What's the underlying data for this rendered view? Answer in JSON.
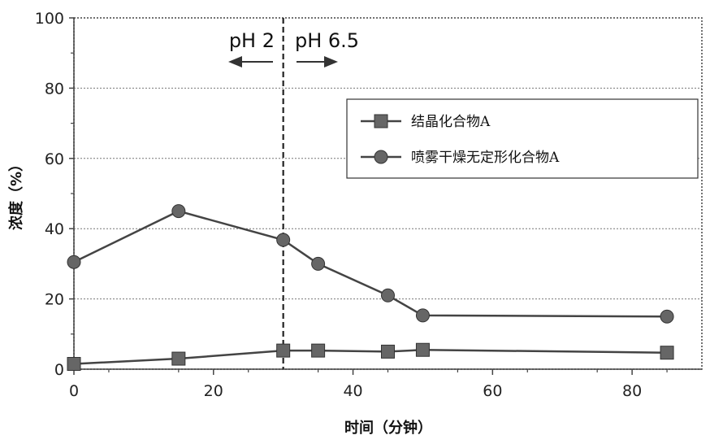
{
  "chart_data": {
    "type": "line",
    "xlabel": "时间（分钟）",
    "ylabel": "浓度（%）",
    "xlim": [
      0,
      90
    ],
    "ylim": [
      0,
      100
    ],
    "xticks": [
      0,
      20,
      40,
      60,
      80
    ],
    "yticks": [
      0,
      20,
      40,
      60,
      80,
      100
    ],
    "grid": "horizontal-dotted",
    "legend_position": "top-right",
    "series": [
      {
        "name": "结晶化合物A",
        "marker": "square",
        "color": "#555555",
        "x": [
          0,
          15,
          30,
          35,
          45,
          50,
          85
        ],
        "y": [
          1.5,
          3,
          5.3,
          5.3,
          5,
          5.5,
          4.7
        ]
      },
      {
        "name": "喷雾干燥无定形化合物A",
        "marker": "circle",
        "color": "#555555",
        "x": [
          0,
          15,
          30,
          35,
          45,
          50,
          85
        ],
        "y": [
          30.5,
          45,
          36.8,
          30,
          21,
          15.3,
          15
        ]
      }
    ],
    "annotations": {
      "phase_boundary_x": 30,
      "left_label": "pH 2",
      "right_label": "pH 6.5"
    }
  }
}
